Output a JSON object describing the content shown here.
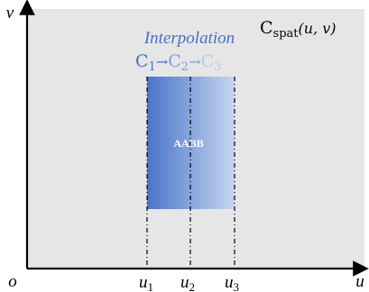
{
  "axes": {
    "y_label": "v",
    "x_label": "u",
    "origin_label": "o"
  },
  "plot": {
    "function_main": "C",
    "function_sub": "spat",
    "function_args": "(u, v)",
    "background": "#e6e6e6"
  },
  "interpolation": {
    "title": "Interpolation",
    "c1_main": "C",
    "c1_sub": "1",
    "c2_main": "C",
    "c2_sub": "2",
    "c3_main": "C",
    "c3_sub": "3",
    "arrow": "→",
    "colors": {
      "c1": "#4472c4",
      "c2": "#7f9fd8",
      "c3": "#b7c9ea"
    }
  },
  "box": {
    "label": "AABB",
    "gradient_start": "#4a75c9",
    "gradient_end": "#c7d6f0"
  },
  "ticks": [
    {
      "main": "u",
      "sub": "1"
    },
    {
      "main": "u",
      "sub": "2"
    },
    {
      "main": "u",
      "sub": "3"
    }
  ]
}
